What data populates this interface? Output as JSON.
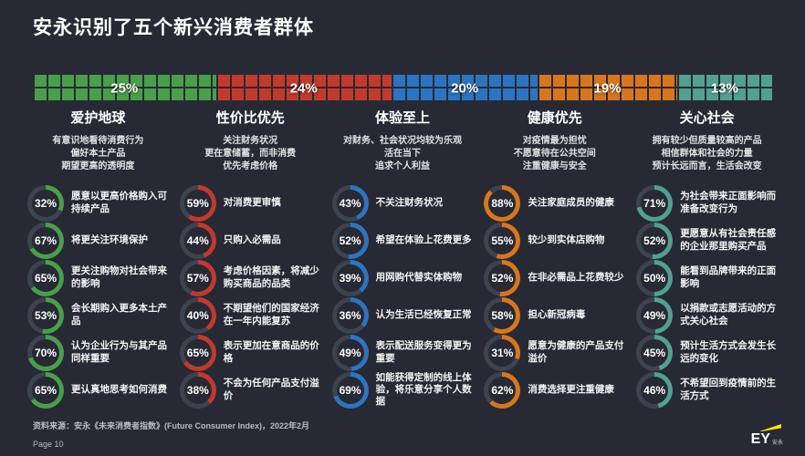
{
  "page": {
    "title": "安永识别了五个新兴消费者群体",
    "source": "资料来源：安永《未来消费者指数》(Future Consumer Index)，2022年2月",
    "page_number": "Page 10",
    "logo": {
      "text": "EY",
      "suffix": "安永",
      "beam_color": "#ffe600"
    }
  },
  "colors": {
    "background": "#272a34",
    "ring_track": "#3e4350",
    "green": "#4a9e4c",
    "red": "#c23a2d",
    "blue": "#2d74c0",
    "orange": "#d8761e",
    "teal": "#52a092"
  },
  "chart_data": {
    "type": "bar",
    "title": "安永识别了五个新兴消费者群体",
    "unit": "%",
    "categories": [
      "爱护地球",
      "性价比优先",
      "体验至上",
      "健康优先",
      "关心社会"
    ],
    "values": [
      25,
      24,
      20,
      19,
      13
    ],
    "groups": [
      {
        "name": "爱护地球",
        "share": 25,
        "color": "#4a9e4c",
        "description": [
          "有意识地看待消费行为",
          "偏好本土产品",
          "期望更高的透明度"
        ],
        "stats": [
          {
            "value": 32,
            "label": "愿意以更高价格购入可持续产品"
          },
          {
            "value": 67,
            "label": "将更关注环境保护"
          },
          {
            "value": 65,
            "label": "更关注购物对社会带来的影响"
          },
          {
            "value": 53,
            "label": "会长期购入更多本土产品"
          },
          {
            "value": 70,
            "label": "认为企业行为与其产品同样重要"
          },
          {
            "value": 65,
            "label": "更认真地思考如何消费"
          }
        ]
      },
      {
        "name": "性价比优先",
        "share": 24,
        "color": "#c23a2d",
        "description": [
          "关注财务状况",
          "更在意储蓄，而非消费",
          "优先考虑价格"
        ],
        "stats": [
          {
            "value": 59,
            "label": "对消费更审慎"
          },
          {
            "value": 44,
            "label": "只购入必需品"
          },
          {
            "value": 57,
            "label": "考虑价格因素，将减少购买商品的品类"
          },
          {
            "value": 40,
            "label": "不期望他们的国家经济在一年内能复苏"
          },
          {
            "value": 65,
            "label": "表示更加在意商品的价格"
          },
          {
            "value": 38,
            "label": "不会为任何产品支付溢价"
          }
        ]
      },
      {
        "name": "体验至上",
        "share": 20,
        "color": "#2d74c0",
        "description": [
          "对财务、社会状况均较为乐观",
          "活在当下",
          "追求个人利益"
        ],
        "stats": [
          {
            "value": 43,
            "label": "不关注财务状况"
          },
          {
            "value": 52,
            "label": "希望在体验上花费更多"
          },
          {
            "value": 39,
            "label": "用网购代替实体购物"
          },
          {
            "value": 36,
            "label": "认为生活已经恢复正常"
          },
          {
            "value": 49,
            "label": "表示配送服务变得更为重要"
          },
          {
            "value": 69,
            "label": "如能获得定制的线上体验，将乐意分享个人数据"
          }
        ]
      },
      {
        "name": "健康优先",
        "share": 19,
        "color": "#d8761e",
        "description": [
          "对疫情最为担忧",
          "不愿意待在公共空间",
          "注重健康与安全"
        ],
        "stats": [
          {
            "value": 88,
            "label": "关注家庭成员的健康"
          },
          {
            "value": 55,
            "label": "较少到实体店购物"
          },
          {
            "value": 52,
            "label": "在非必需品上花费较少"
          },
          {
            "value": 58,
            "label": "担心新冠病毒"
          },
          {
            "value": 31,
            "label": "愿意为健康的产品支付溢价"
          },
          {
            "value": 62,
            "label": "消费选择更注重健康"
          }
        ]
      },
      {
        "name": "关心社会",
        "share": 13,
        "color": "#52a092",
        "description": [
          "拥有较少但质量较高的产品",
          "相信群体和社会的力量",
          "预计长远而言，生活会改变"
        ],
        "stats": [
          {
            "value": 71,
            "label": "为社会带来正面影响而准备改变行为"
          },
          {
            "value": 52,
            "label": "更愿意从有社会责任感的企业那里购买产品"
          },
          {
            "value": 50,
            "label": "能看到品牌带来的正面影响"
          },
          {
            "value": 49,
            "label": "以捐款或志愿活动的方式关心社会"
          },
          {
            "value": 45,
            "label": "预计生活方式会发生长远的变化"
          },
          {
            "value": 46,
            "label": "不希望回到疫情前的生活方式"
          }
        ]
      }
    ]
  }
}
